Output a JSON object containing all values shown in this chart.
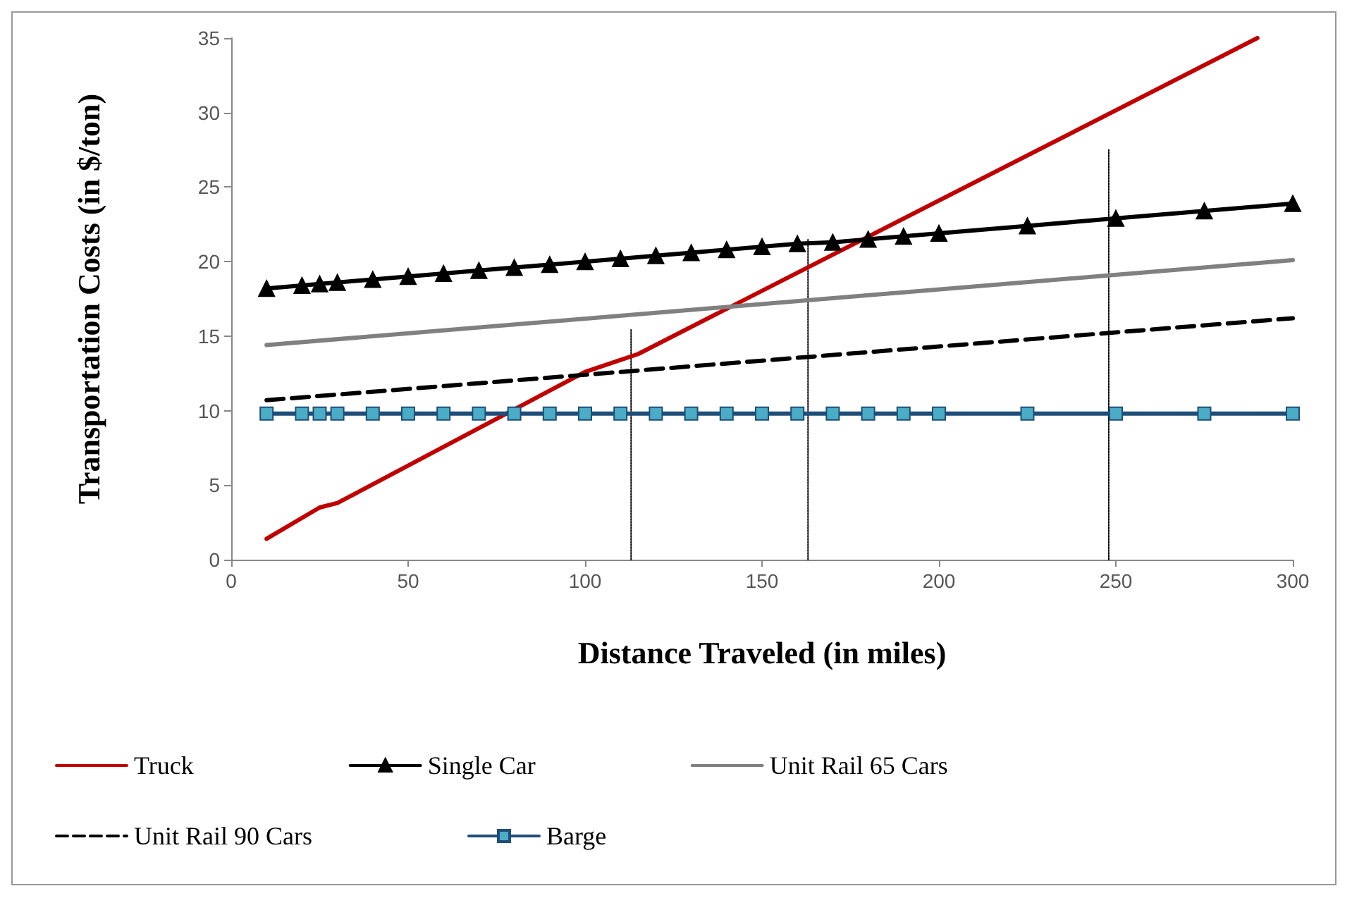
{
  "chart_data": {
    "type": "line",
    "xlabel": "Distance Traveled (in miles)",
    "ylabel": "Transportation Costs (in $/ton)",
    "xlim": [
      0,
      300
    ],
    "xticks": [
      0,
      50,
      100,
      150,
      200,
      250,
      300
    ],
    "ylim": [
      0,
      35
    ],
    "yticks": [
      0,
      5,
      10,
      15,
      20,
      25,
      30,
      35
    ],
    "grid": false,
    "legend": "bottom",
    "marker": "none",
    "line_style": "solid",
    "series": [
      {
        "name": "Truck",
        "color": "#c00000",
        "x": [
          10,
          25,
          30,
          100,
          115,
          290
        ],
        "values": [
          1.4,
          3.5,
          3.8,
          12.6,
          13.8,
          35
        ]
      },
      {
        "name": "Single Car",
        "color": "#000000",
        "marker": "triangle",
        "x": [
          10,
          20,
          25,
          30,
          40,
          50,
          60,
          70,
          80,
          90,
          100,
          110,
          120,
          130,
          140,
          150,
          160,
          170,
          180,
          190,
          200,
          225,
          250,
          275,
          300
        ],
        "values": [
          18.2,
          18.4,
          18.5,
          18.6,
          18.8,
          19.0,
          19.2,
          19.4,
          19.6,
          19.8,
          20.0,
          20.2,
          20.4,
          20.6,
          20.8,
          21.0,
          21.2,
          21.3,
          21.5,
          21.7,
          21.9,
          22.4,
          22.9,
          23.4,
          23.9
        ]
      },
      {
        "name": "Unit Rail 65 Cars",
        "color": "#808080",
        "x": [
          10,
          300
        ],
        "values": [
          14.4,
          20.1
        ]
      },
      {
        "name": "Unit Rail 90 Cars",
        "color": "#000000",
        "line_style": "dashed",
        "x": [
          10,
          300
        ],
        "values": [
          10.7,
          16.2
        ]
      },
      {
        "name": "Barge",
        "color": "#1f4e79",
        "marker": "square",
        "x": [
          10,
          20,
          25,
          30,
          40,
          50,
          60,
          70,
          80,
          90,
          100,
          110,
          120,
          130,
          140,
          150,
          160,
          170,
          180,
          190,
          200,
          225,
          250,
          275,
          300
        ],
        "values": [
          9.8,
          9.8,
          9.8,
          9.8,
          9.8,
          9.8,
          9.8,
          9.8,
          9.8,
          9.8,
          9.8,
          9.8,
          9.8,
          9.8,
          9.8,
          9.8,
          9.8,
          9.8,
          9.8,
          9.8,
          9.8,
          9.8,
          9.8,
          9.8,
          9.8
        ]
      },
      {
        "color": "#000000",
        "line_style": "dotted",
        "x": [
          113,
          113
        ],
        "values": [
          0,
          15.5
        ]
      },
      {
        "color": "#000000",
        "line_style": "dotted",
        "x": [
          163,
          163
        ],
        "values": [
          0,
          21.5
        ]
      },
      {
        "color": "#000000",
        "line_style": "dotted",
        "x": [
          248,
          248
        ],
        "values": [
          0,
          27.5
        ]
      }
    ]
  }
}
